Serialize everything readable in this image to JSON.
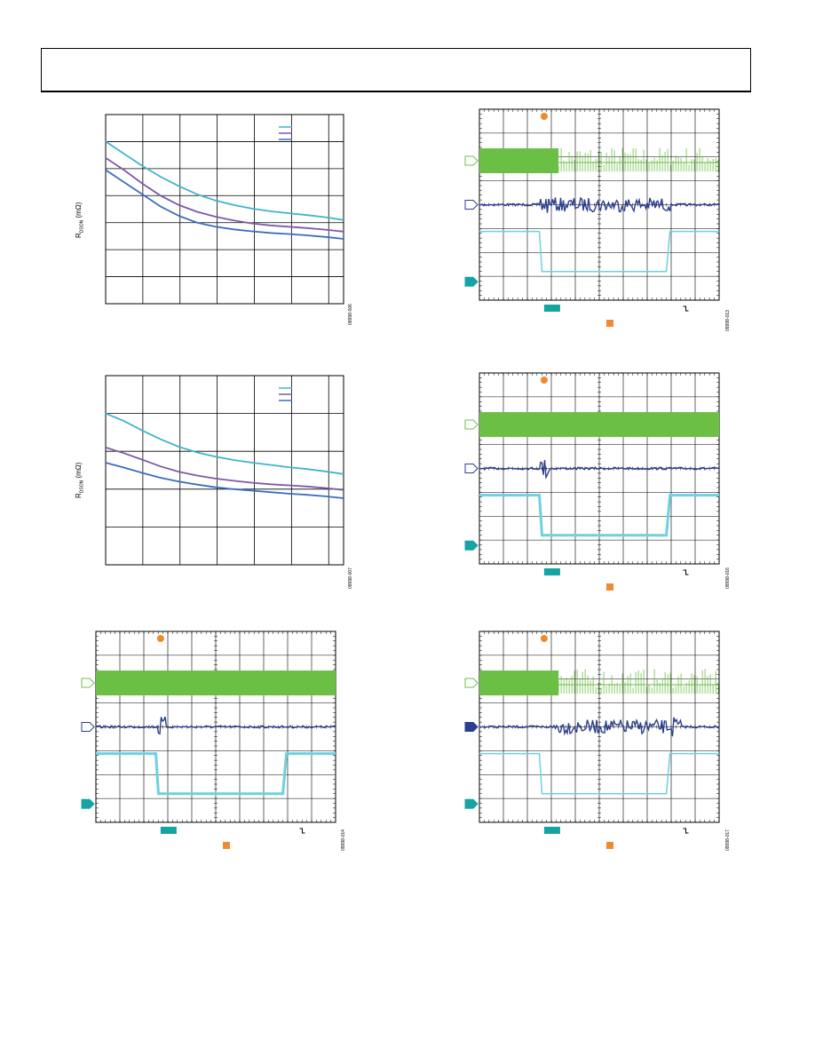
{
  "header": {
    "title": ""
  },
  "colors": {
    "teal": "#3fb5c9",
    "purple": "#7e59a6",
    "blue": "#3a6dbf",
    "scope_green": "#6cbf45",
    "scope_navy": "#2b3f8f",
    "scope_cyan": "#6ed0e0",
    "marker_teal": "#16a3a3",
    "marker_orange": "#f08a2e"
  },
  "charts": [
    {
      "id": "rdson-chart-1",
      "ylabel_main": "R",
      "ylabel_sub": "DSON",
      "ylabel_unit": " (mΩ)",
      "figure_id": "09998-006",
      "chart_data": {
        "type": "line",
        "grid": true,
        "x": [
          0,
          0.5,
          1,
          1.5,
          2,
          2.5,
          3,
          3.5,
          4,
          4.5,
          5,
          5.5,
          6,
          6.5
        ],
        "xlim": [
          0,
          6.5
        ],
        "ylim": [
          0,
          7
        ],
        "series": [
          {
            "values": [
              6.0,
              5.55,
              5.1,
              4.7,
              4.35,
              4.05,
              3.82,
              3.65,
              3.52,
              3.42,
              3.35,
              3.28,
              3.2,
              3.1
            ]
          },
          {
            "values": [
              5.4,
              4.95,
              4.45,
              4.0,
              3.65,
              3.4,
              3.22,
              3.08,
              2.97,
              2.9,
              2.85,
              2.8,
              2.74,
              2.67
            ]
          },
          {
            "values": [
              4.95,
              4.5,
              4.05,
              3.6,
              3.25,
              3.0,
              2.85,
              2.75,
              2.68,
              2.62,
              2.58,
              2.53,
              2.47,
              2.4
            ]
          }
        ]
      }
    },
    {
      "id": "rdson-chart-2",
      "ylabel_main": "R",
      "ylabel_sub": "DSON",
      "ylabel_unit": " (mΩ)",
      "figure_id": "09998-007",
      "chart_data": {
        "type": "line",
        "grid": true,
        "x": [
          0,
          0.5,
          1,
          1.5,
          2,
          2.5,
          3,
          3.5,
          4,
          4.5,
          5,
          5.5,
          6,
          6.5
        ],
        "xlim": [
          0,
          6.5
        ],
        "ylim": [
          0,
          5
        ],
        "series": [
          {
            "values": [
              4.0,
              3.8,
              3.55,
              3.32,
              3.12,
              2.97,
              2.86,
              2.77,
              2.7,
              2.64,
              2.58,
              2.53,
              2.47,
              2.4
            ]
          },
          {
            "values": [
              3.1,
              2.95,
              2.78,
              2.6,
              2.46,
              2.36,
              2.28,
              2.22,
              2.17,
              2.13,
              2.1,
              2.07,
              2.03,
              1.98
            ]
          },
          {
            "values": [
              2.7,
              2.57,
              2.43,
              2.3,
              2.2,
              2.12,
              2.05,
              2.0,
              1.96,
              1.92,
              1.88,
              1.85,
              1.81,
              1.76
            ]
          }
        ]
      }
    }
  ],
  "scopes": [
    {
      "id": "scope-13",
      "figure_id": "09998-013"
    },
    {
      "id": "scope-14",
      "figure_id": "09998-014"
    },
    {
      "id": "scope-16",
      "figure_id": "09998-016"
    },
    {
      "id": "scope-17",
      "figure_id": "09998-017"
    }
  ]
}
